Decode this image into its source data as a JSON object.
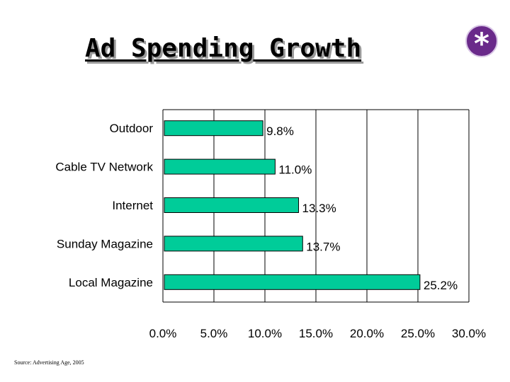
{
  "title": "Ad Spending Growth",
  "badge": "*",
  "source": "Source: Advertising Age, 2005",
  "colors": {
    "bar": "#00cc99",
    "badge": "#6a2a8a"
  },
  "chart_data": {
    "type": "bar",
    "orientation": "horizontal",
    "categories": [
      "Outdoor",
      "Cable TV Network",
      "Internet",
      "Sunday Magazine",
      "Local Magazine"
    ],
    "values": [
      9.8,
      11.0,
      13.3,
      13.7,
      25.2
    ],
    "value_labels": [
      "9.8%",
      "11.0%",
      "13.3%",
      "13.7%",
      "25.2%"
    ],
    "xlim": [
      0,
      30
    ],
    "x_ticks": [
      "0.0%",
      "5.0%",
      "10.0%",
      "15.0%",
      "20.0%",
      "25.0%",
      "30.0%"
    ],
    "x_tick_values": [
      0,
      5,
      10,
      15,
      20,
      25,
      30
    ],
    "grid": true
  }
}
